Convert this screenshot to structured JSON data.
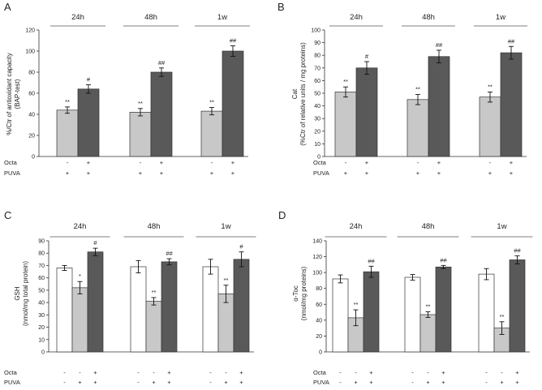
{
  "chart_data": [
    {
      "panel": "A",
      "type": "bar",
      "groups": [
        "24h",
        "48h",
        "1w"
      ],
      "ylabel_lines": [
        "%/Ctr of antioxidant capacity",
        "(BAP-test)"
      ],
      "ylim": [
        0,
        120
      ],
      "ticks": [
        0,
        20,
        40,
        60,
        80,
        100,
        120
      ],
      "grid": false,
      "series": [
        {
          "fill": "#c8c8c8",
          "values": [
            44,
            42,
            43
          ],
          "errors": [
            3,
            3.5,
            3.5
          ],
          "sig": [
            "**",
            "**",
            "**"
          ]
        },
        {
          "fill": "#595959",
          "values": [
            64,
            80,
            100
          ],
          "errors": [
            4,
            4,
            5
          ],
          "sig": [
            "#",
            "##",
            "##"
          ]
        }
      ],
      "conditions": [
        {
          "label": "Octa",
          "values": [
            "-",
            "+"
          ]
        },
        {
          "label": "PUVA",
          "values": [
            "+",
            "+"
          ]
        }
      ]
    },
    {
      "panel": "B",
      "type": "bar",
      "groups": [
        "24h",
        "48h",
        "1w"
      ],
      "ylabel_lines": [
        "Cat",
        "(%Ctr of relative units / mg proteins)"
      ],
      "ylim": [
        0,
        100
      ],
      "ticks": [
        0,
        10,
        20,
        30,
        40,
        50,
        60,
        70,
        80,
        90,
        100
      ],
      "grid": false,
      "series": [
        {
          "fill": "#c8c8c8",
          "values": [
            51,
            45,
            47
          ],
          "errors": [
            4,
            4,
            4
          ],
          "sig": [
            "**",
            "**",
            "**"
          ]
        },
        {
          "fill": "#595959",
          "values": [
            70,
            79,
            82
          ],
          "errors": [
            5,
            5,
            5
          ],
          "sig": [
            "#",
            "##",
            "##"
          ]
        }
      ],
      "conditions": [
        {
          "label": "Octa",
          "values": [
            "-",
            "+"
          ]
        },
        {
          "label": "PUVA",
          "values": [
            "+",
            "+"
          ]
        }
      ]
    },
    {
      "panel": "C",
      "type": "bar",
      "groups": [
        "24h",
        "48h",
        "1w"
      ],
      "ylabel_lines": [
        "GSH",
        "(nmol/mg total protein)"
      ],
      "ylim": [
        0,
        90
      ],
      "ticks": [
        0,
        10,
        20,
        30,
        40,
        50,
        60,
        70,
        80,
        90
      ],
      "grid": false,
      "series": [
        {
          "fill": "#ffffff",
          "values": [
            68,
            69,
            69
          ],
          "errors": [
            2,
            5,
            6
          ],
          "sig": [
            "",
            "",
            ""
          ]
        },
        {
          "fill": "#c8c8c8",
          "values": [
            52,
            41,
            47
          ],
          "errors": [
            5,
            3,
            7
          ],
          "sig": [
            "*",
            "**",
            "**"
          ]
        },
        {
          "fill": "#595959",
          "values": [
            81,
            73,
            75
          ],
          "errors": [
            3,
            2.5,
            6
          ],
          "sig": [
            "#",
            "##",
            "#"
          ]
        }
      ],
      "conditions": [
        {
          "label": "Octa",
          "values": [
            "-",
            "-",
            "+"
          ]
        },
        {
          "label": "PUVA",
          "values": [
            "-",
            "+",
            "+"
          ]
        }
      ]
    },
    {
      "panel": "D",
      "type": "bar",
      "groups": [
        "24h",
        "48h",
        "1w"
      ],
      "ylabel_lines": [
        "α-Toc",
        "(nmol/mg proteins)"
      ],
      "ylim": [
        0,
        140
      ],
      "ticks": [
        0,
        20,
        40,
        60,
        80,
        100,
        120,
        140
      ],
      "grid": false,
      "series": [
        {
          "fill": "#ffffff",
          "values": [
            92,
            94,
            98
          ],
          "errors": [
            5,
            3.5,
            7
          ],
          "sig": [
            "",
            "",
            ""
          ]
        },
        {
          "fill": "#c8c8c8",
          "values": [
            43,
            47,
            30
          ],
          "errors": [
            10,
            3.5,
            8
          ],
          "sig": [
            "**",
            "**",
            "**"
          ]
        },
        {
          "fill": "#595959",
          "values": [
            101,
            107,
            116
          ],
          "errors": [
            7,
            2,
            5
          ],
          "sig": [
            "##",
            "##",
            "##"
          ]
        }
      ],
      "conditions": [
        {
          "label": "Octa",
          "values": [
            "-",
            "-",
            "+"
          ]
        },
        {
          "label": "PUVA",
          "values": [
            "-",
            "+",
            "+"
          ]
        }
      ]
    }
  ]
}
